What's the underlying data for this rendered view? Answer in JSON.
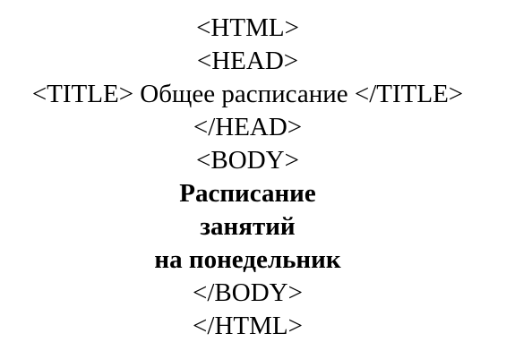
{
  "document": {
    "lines": [
      {
        "text": "<HTML>",
        "bold": false
      },
      {
        "text": "<HEAD>",
        "bold": false
      },
      {
        "text": "<TITLE> Общее расписание </TITLE>",
        "bold": false
      },
      {
        "text": "</HEAD>",
        "bold": false
      },
      {
        "text": "<BODY>",
        "bold": false
      },
      {
        "text": "Расписание",
        "bold": true
      },
      {
        "text": "занятий",
        "bold": true
      },
      {
        "text": "на понедельник",
        "bold": true
      },
      {
        "text": "</BODY>",
        "bold": false
      },
      {
        "text": "</HTML>",
        "bold": false
      }
    ],
    "text_color": "#000000",
    "background_color": "#ffffff"
  }
}
